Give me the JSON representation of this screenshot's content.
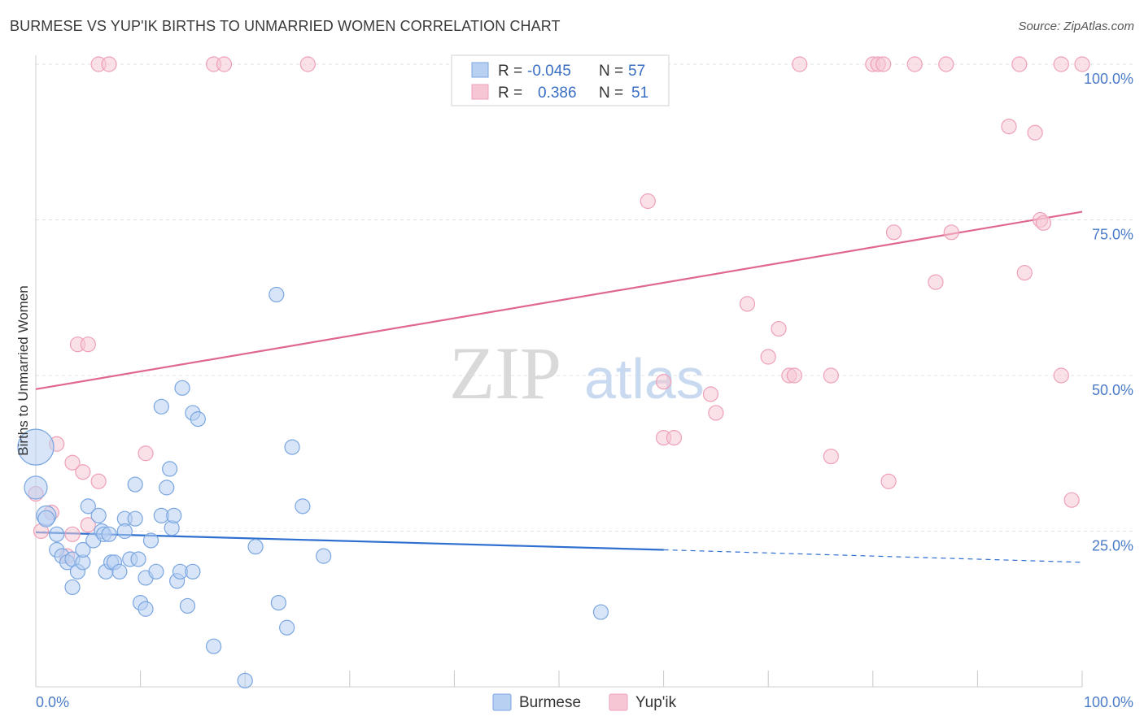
{
  "chart_data": {
    "type": "scatter",
    "title": "BURMESE VS YUP'IK BIRTHS TO UNMARRIED WOMEN CORRELATION CHART",
    "source": "Source: ZipAtlas.com",
    "xlabel": "",
    "ylabel": "Births to Unmarried Women",
    "xlim": [
      0,
      100
    ],
    "ylim": [
      0,
      100
    ],
    "x_tick_labels": [
      "0.0%",
      "100.0%"
    ],
    "y_ticks": [
      25,
      50,
      75,
      100
    ],
    "y_tick_labels": [
      "25.0%",
      "50.0%",
      "75.0%",
      "100.0%"
    ],
    "watermark": {
      "zip": "ZIP",
      "atlas": "atlas"
    },
    "legend": {
      "rows": [
        {
          "r_label": "R =",
          "r_value": "-0.045",
          "n_label": "N =",
          "n_value": "57"
        },
        {
          "r_label": "R =",
          "r_value": "0.386",
          "n_label": "N =",
          "n_value": "51"
        }
      ]
    },
    "series": [
      {
        "name": "Burmese",
        "color": "#7aa6e0",
        "fill": "#b8d0f2",
        "trend_color": "#2e6fd0",
        "trend": {
          "x0": 0,
          "y0": 24.8,
          "x1": 60,
          "y1": 22.0,
          "dash_x1": 100,
          "dash_y1": 20.0
        },
        "points": [
          [
            0,
            38.5,
            22
          ],
          [
            0,
            32,
            14
          ],
          [
            1,
            27.5,
            12
          ],
          [
            1,
            27,
            10
          ],
          [
            2,
            24.5,
            9
          ],
          [
            2,
            22,
            9
          ],
          [
            2.5,
            21,
            9
          ],
          [
            3,
            20,
            9
          ],
          [
            3.5,
            20.5,
            9
          ],
          [
            4,
            18.5,
            9
          ],
          [
            3.5,
            16,
            9
          ],
          [
            4.5,
            20,
            9
          ],
          [
            4.5,
            22,
            9
          ],
          [
            5,
            29,
            9
          ],
          [
            5.5,
            23.5,
            9
          ],
          [
            6,
            27.5,
            9
          ],
          [
            6.3,
            25,
            9
          ],
          [
            6.5,
            24.5,
            9
          ],
          [
            6.7,
            18.5,
            9
          ],
          [
            7,
            24.5,
            9
          ],
          [
            7.2,
            20,
            9
          ],
          [
            7.5,
            20,
            9
          ],
          [
            8,
            18.5,
            9
          ],
          [
            8.5,
            27,
            9
          ],
          [
            8.5,
            25,
            9
          ],
          [
            9,
            20.5,
            9
          ],
          [
            9.5,
            27,
            9
          ],
          [
            9.5,
            32.5,
            9
          ],
          [
            9.8,
            20.5,
            9
          ],
          [
            10,
            13.5,
            9
          ],
          [
            10.5,
            17.5,
            9
          ],
          [
            10.5,
            12.5,
            9
          ],
          [
            11,
            23.5,
            9
          ],
          [
            11.5,
            18.5,
            9
          ],
          [
            12,
            27.5,
            9
          ],
          [
            12,
            45,
            9
          ],
          [
            12.5,
            32,
            9
          ],
          [
            12.8,
            35,
            9
          ],
          [
            13,
            25.5,
            9
          ],
          [
            13.2,
            27.5,
            9
          ],
          [
            13.5,
            17,
            9
          ],
          [
            13.8,
            18.5,
            9
          ],
          [
            14,
            48,
            9
          ],
          [
            14.5,
            13,
            9
          ],
          [
            15,
            18.5,
            9
          ],
          [
            15,
            44,
            9
          ],
          [
            15.5,
            43,
            9
          ],
          [
            17,
            6.5,
            9
          ],
          [
            20,
            1,
            9
          ],
          [
            21,
            22.5,
            9
          ],
          [
            23,
            63,
            9
          ],
          [
            23.2,
            13.5,
            9
          ],
          [
            24,
            9.5,
            9
          ],
          [
            24.5,
            38.5,
            9
          ],
          [
            25.5,
            29,
            9
          ],
          [
            27.5,
            21,
            9
          ],
          [
            54,
            12,
            9
          ]
        ]
      },
      {
        "name": "Yup'ik",
        "color": "#eea0b8",
        "fill": "#f6c6d4",
        "trend_color": "#e06890",
        "trend": {
          "x0": 0,
          "y0": 47.8,
          "x1": 100,
          "y1": 76.3
        },
        "points": [
          [
            0,
            31,
            9
          ],
          [
            0.5,
            25,
            9
          ],
          [
            1.5,
            28,
            9
          ],
          [
            2,
            39,
            9
          ],
          [
            3.5,
            24.5,
            9
          ],
          [
            3,
            21,
            9
          ],
          [
            3.5,
            36,
            9
          ],
          [
            4,
            55,
            9
          ],
          [
            4.5,
            34.5,
            9
          ],
          [
            5,
            55,
            9
          ],
          [
            5,
            26,
            9
          ],
          [
            6,
            33,
            9
          ],
          [
            6,
            100,
            9
          ],
          [
            7,
            100,
            9
          ],
          [
            10.5,
            37.5,
            9
          ],
          [
            17,
            100,
            9
          ],
          [
            18,
            100,
            9
          ],
          [
            26,
            100,
            9
          ],
          [
            58.5,
            78,
            9
          ],
          [
            60,
            49,
            9
          ],
          [
            60,
            40,
            9
          ],
          [
            61,
            40,
            9
          ],
          [
            64.5,
            47,
            9
          ],
          [
            65,
            44,
            9
          ],
          [
            68,
            61.5,
            9
          ],
          [
            70,
            53,
            9
          ],
          [
            71,
            57.5,
            9
          ],
          [
            72,
            50,
            9
          ],
          [
            72.5,
            50,
            9
          ],
          [
            73,
            100,
            9
          ],
          [
            76,
            37,
            9
          ],
          [
            76,
            50,
            9
          ],
          [
            80,
            100,
            9
          ],
          [
            80.5,
            100,
            9
          ],
          [
            81,
            100,
            9
          ],
          [
            81.5,
            33,
            9
          ],
          [
            82,
            73,
            9
          ],
          [
            84,
            100,
            9
          ],
          [
            86,
            65,
            9
          ],
          [
            87,
            100,
            9
          ],
          [
            87.5,
            73,
            9
          ],
          [
            93,
            90,
            9
          ],
          [
            94,
            100,
            9
          ],
          [
            94.5,
            66.5,
            9
          ],
          [
            95.5,
            89,
            9
          ],
          [
            96,
            75,
            9
          ],
          [
            96.3,
            74.5,
            9
          ],
          [
            98,
            100,
            9
          ],
          [
            98,
            50,
            9
          ],
          [
            99,
            30,
            9
          ],
          [
            100,
            100,
            9
          ]
        ]
      }
    ]
  }
}
